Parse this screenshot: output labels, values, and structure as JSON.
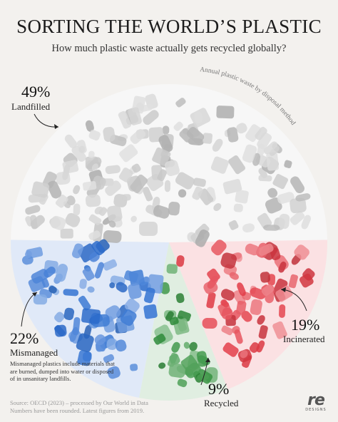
{
  "header": {
    "title": "SORTING THE WORLD’S PLASTIC",
    "subtitle": "How much plastic waste actually gets recycled globally?"
  },
  "chart_data": {
    "type": "pie",
    "arc_label": "Annual plastic waste by disposal method",
    "slices": [
      {
        "label": "Landfilled",
        "value": 49,
        "display": "49%",
        "color": "#c9c9c9"
      },
      {
        "label": "Incinerated",
        "value": 19,
        "display": "19%",
        "color": "#e23a45"
      },
      {
        "label": "Recycled",
        "value": 9,
        "display": "9%",
        "color": "#2f8f3a"
      },
      {
        "label": "Mismanaged",
        "value": 22,
        "display": "22%",
        "color": "#2d6fd1"
      }
    ]
  },
  "labels": {
    "landfilled_pct": "49%",
    "landfilled": "Landfilled",
    "mismanaged_pct": "22%",
    "mismanaged": "Mismanaged",
    "incinerated_pct": "19%",
    "incinerated": "Incinerated",
    "recycled_pct": "9%",
    "recycled": "Recycled"
  },
  "mismanaged_note": "Mismanaged plastics include materials that are burned, dumped into water or disposed of in unsanitary landfills.",
  "source": {
    "line1": "Source: OECD (2023) – processed by Our World in Data",
    "line2": "Numbers have been rounded. Latest figures from 2019."
  },
  "logo": {
    "mark": "re",
    "sub": "DESIGNS"
  }
}
